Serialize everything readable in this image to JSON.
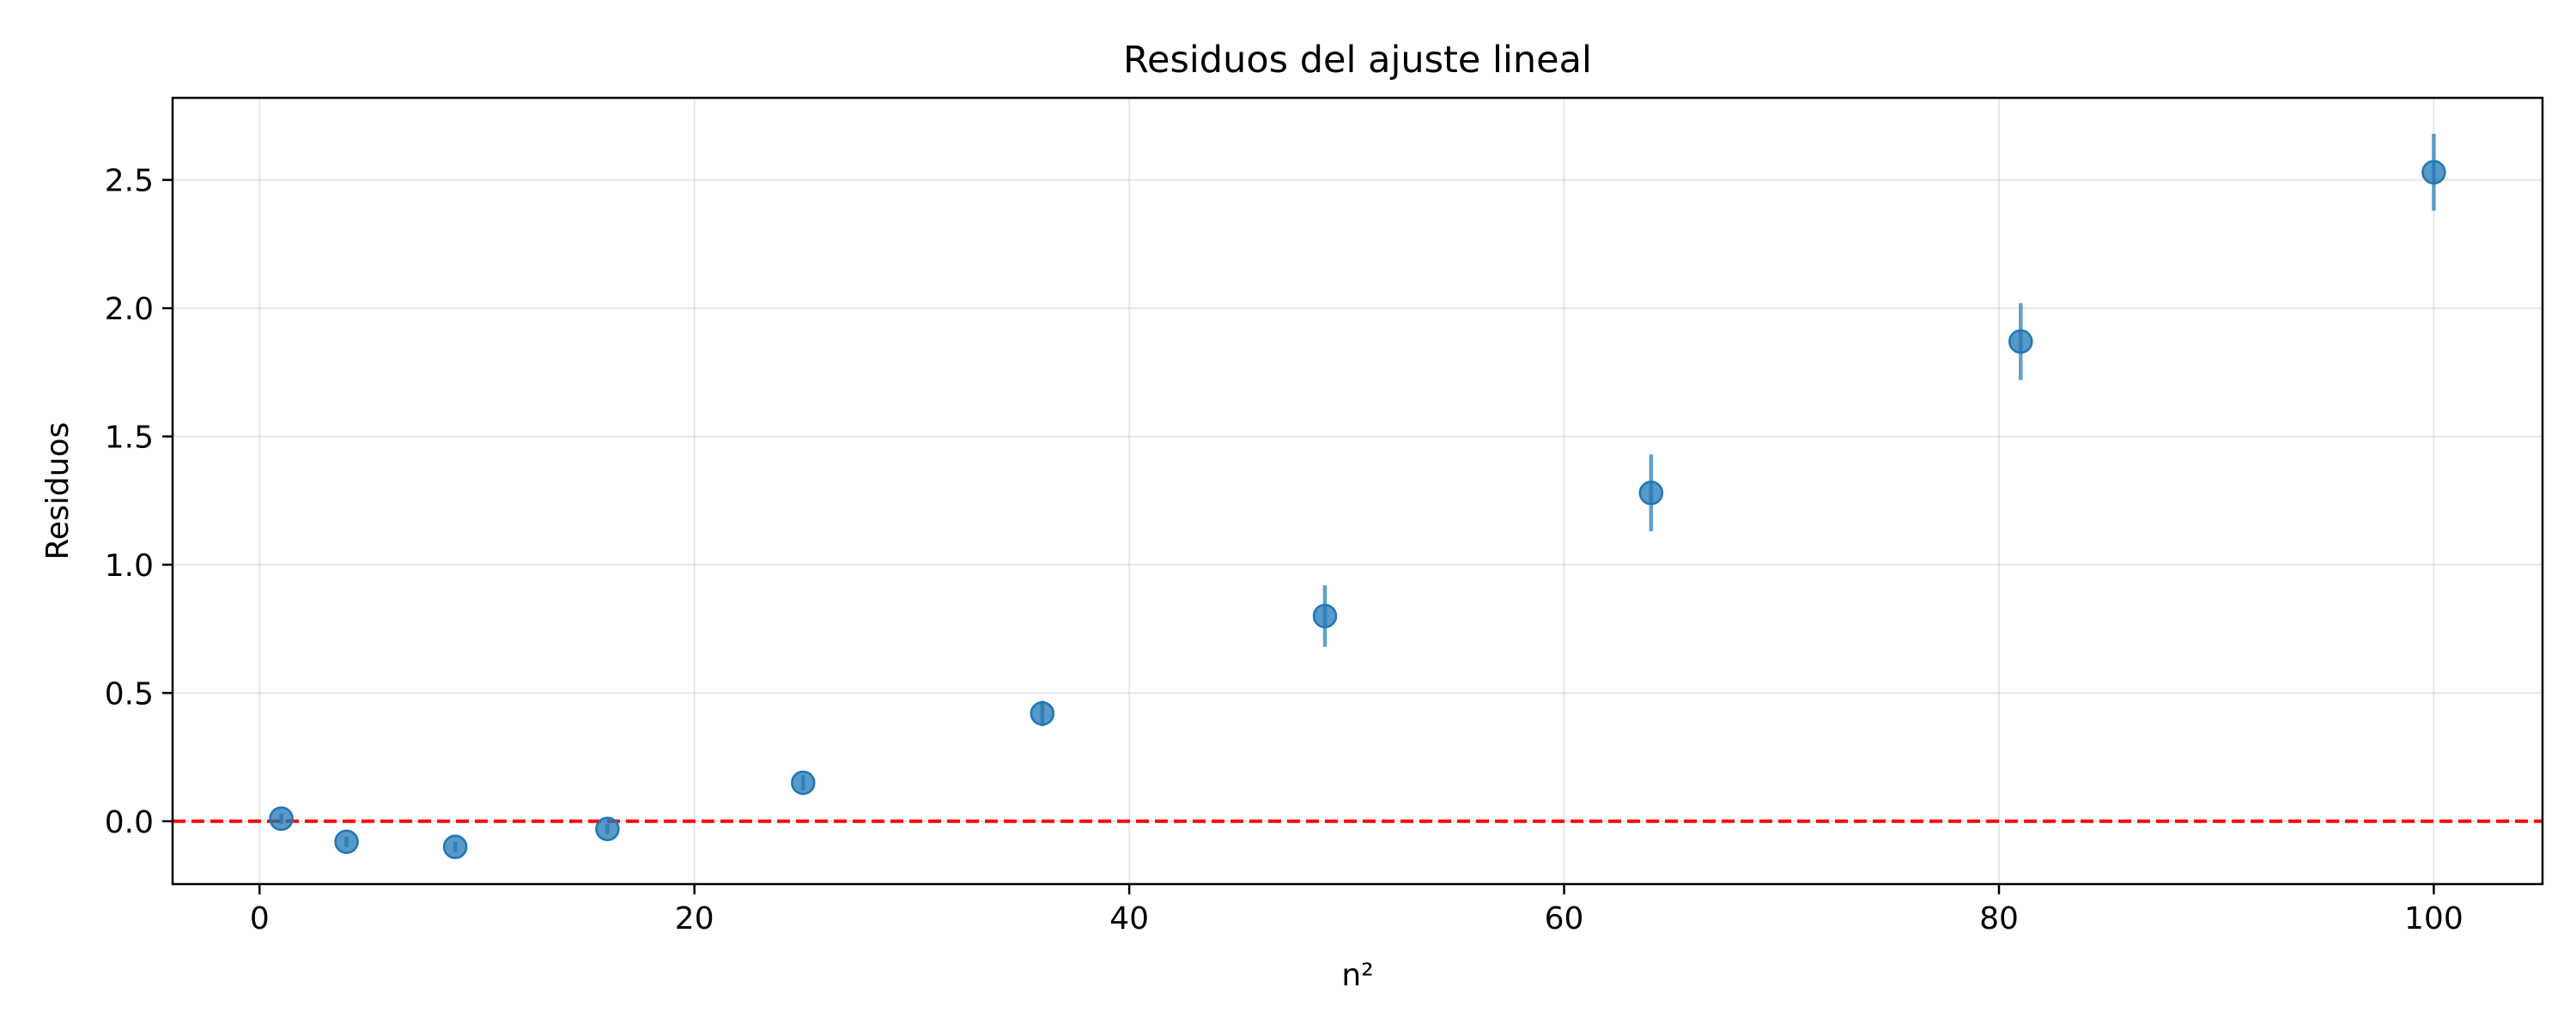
{
  "chart_data": {
    "type": "scatter",
    "title": "Residuos del ajuste lineal",
    "xlabel": "n²",
    "ylabel": "Residuos",
    "xlim": [
      -4,
      105
    ],
    "ylim": [
      -0.245,
      2.82
    ],
    "xticks": [
      0,
      20,
      40,
      60,
      80,
      100
    ],
    "xtick_labels": [
      "0",
      "20",
      "40",
      "60",
      "80",
      "100"
    ],
    "yticks": [
      0.0,
      0.5,
      1.0,
      1.5,
      2.0,
      2.5
    ],
    "ytick_labels": [
      "0.0",
      "0.5",
      "1.0",
      "1.5",
      "2.0",
      "2.5"
    ],
    "grid": true,
    "reference_line": {
      "y": 0,
      "style": "dashed",
      "color": "#ff0000"
    },
    "series": [
      {
        "color": "#1f77b4",
        "x": [
          1,
          4,
          9,
          16,
          25,
          36,
          49,
          64,
          81,
          100
        ],
        "y": [
          0.01,
          -0.08,
          -0.1,
          -0.03,
          0.15,
          0.42,
          0.8,
          1.28,
          1.87,
          2.53
        ],
        "yerr": [
          0.02,
          0.02,
          0.02,
          0.02,
          0.03,
          0.05,
          0.12,
          0.15,
          0.15,
          0.15
        ]
      }
    ]
  }
}
